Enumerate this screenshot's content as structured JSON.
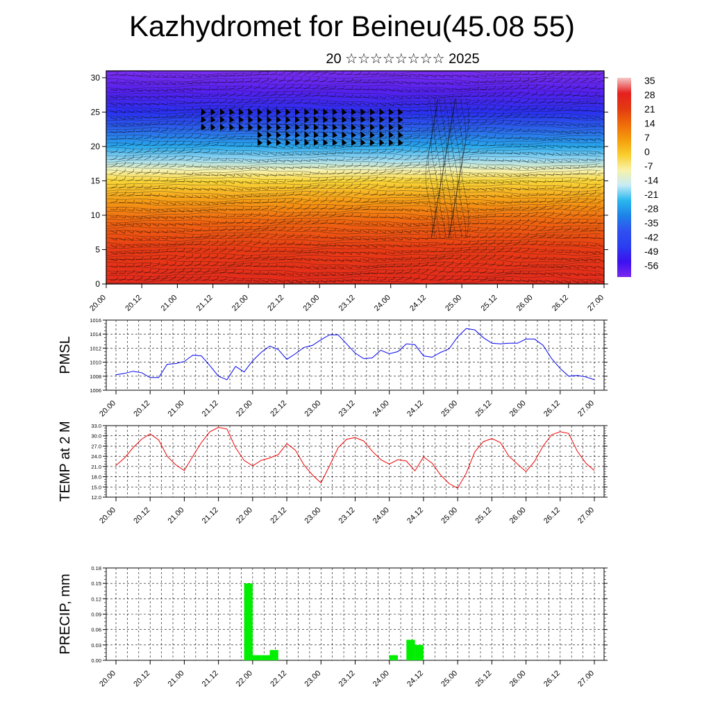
{
  "title": "Kazhydromet for Beineu(45.08 55)",
  "subtitle": "20 ☆☆☆☆☆☆☆☆ 2025",
  "time_ticks": [
    "20.00",
    "20.12",
    "21.00",
    "21.12",
    "22.00",
    "22.12",
    "23.00",
    "23.12",
    "24.00",
    "24.12",
    "25.00",
    "25.12",
    "26.00",
    "26.12",
    "27.00"
  ],
  "chart_data": [
    {
      "type": "heatmap",
      "name": "upper-air temperature with wind barbs",
      "y_ticks": [
        0,
        5,
        10,
        15,
        20,
        25,
        30
      ],
      "ylim": [
        0,
        31
      ],
      "colorbar": {
        "labels": [
          "35",
          "28",
          "21",
          "14",
          "7",
          "0",
          "-7",
          "-14",
          "-21",
          "-28",
          "-35",
          "-42",
          "-49",
          "-56"
        ],
        "colors": [
          "#f4c8c8",
          "#e52020",
          "#e23a10",
          "#ef6a0a",
          "#f59b0c",
          "#f9cd2a",
          "#f8f2a8",
          "#c8ecf6",
          "#2ab8ee",
          "#1e82e8",
          "#3050f0",
          "#2a3ff0",
          "#3c10ef",
          "#7a28ef"
        ]
      },
      "bands": [
        {
          "h": 0,
          "color": "#e42a1c"
        },
        {
          "h": 5,
          "color": "#e83a14"
        },
        {
          "h": 9,
          "color": "#ef6410"
        },
        {
          "h": 12,
          "color": "#f59a14"
        },
        {
          "h": 15,
          "color": "#f9d638"
        },
        {
          "h": 16.5,
          "color": "#f6f2b0"
        },
        {
          "h": 18,
          "color": "#9fdcf2"
        },
        {
          "h": 20,
          "color": "#28a8ec"
        },
        {
          "h": 22.5,
          "color": "#2a64ea"
        },
        {
          "h": 25,
          "color": "#2a30f0"
        },
        {
          "h": 28,
          "color": "#5420ee"
        },
        {
          "h": 31,
          "color": "#7a2ef0"
        }
      ]
    },
    {
      "type": "line",
      "ylabel": "PMSL",
      "ylim": [
        1006,
        1016
      ],
      "y_ticks": [
        "1006",
        "1008",
        "1010",
        "1012",
        "1014",
        "1016"
      ],
      "color": "#0000ee",
      "values": [
        1008.2,
        1008.4,
        1008.7,
        1008.5,
        1007.8,
        1007.8,
        1009.7,
        1009.8,
        1010.1,
        1011.0,
        1010.9,
        1009.5,
        1008.0,
        1007.5,
        1009.4,
        1008.6,
        1010.2,
        1011.4,
        1012.3,
        1011.8,
        1010.4,
        1011.2,
        1012.1,
        1012.4,
        1013.2,
        1013.9,
        1013.9,
        1012.6,
        1011.3,
        1010.5,
        1010.6,
        1011.7,
        1011.2,
        1011.5,
        1012.6,
        1012.5,
        1010.9,
        1010.7,
        1011.4,
        1011.9,
        1013.6,
        1014.8,
        1014.6,
        1013.5,
        1012.7,
        1012.6,
        1012.7,
        1012.7,
        1013.3,
        1013.3,
        1012.4,
        1010.5,
        1009.1,
        1008.0,
        1008.1,
        1007.9,
        1007.5
      ]
    },
    {
      "type": "line",
      "ylabel": "TEMP at 2 M",
      "ylim": [
        12,
        33
      ],
      "y_ticks": [
        "12.0",
        "15.0",
        "18.0",
        "21.0",
        "24.0",
        "27.0",
        "30.0",
        "33.0"
      ],
      "color": "#ee0000",
      "values": [
        21.3,
        23.5,
        26.5,
        29.0,
        30.6,
        28.8,
        24.0,
        21.5,
        19.8,
        24.0,
        28.0,
        31.2,
        32.5,
        32.0,
        26.5,
        22.8,
        21.2,
        22.8,
        23.5,
        24.5,
        27.7,
        25.8,
        21.5,
        18.5,
        16.2,
        21.2,
        26.5,
        29.0,
        29.5,
        28.5,
        25.5,
        23.0,
        21.7,
        23.0,
        22.6,
        19.7,
        23.8,
        22.0,
        18.5,
        16.0,
        14.6,
        19.0,
        25.3,
        28.3,
        29.2,
        28.0,
        24.0,
        21.7,
        19.5,
        22.5,
        27.0,
        30.3,
        31.2,
        30.7,
        25.5,
        22.0,
        19.8
      ]
    },
    {
      "type": "bar",
      "ylabel": "PRECIP, mm",
      "ylim": [
        0,
        0.18
      ],
      "y_ticks": [
        "0.00",
        "0.03",
        "0.06",
        "0.09",
        "0.12",
        "0.15",
        "0.18"
      ],
      "color": "#00ee00",
      "bars": [
        {
          "t": 15,
          "value": 0.15
        },
        {
          "t": 16,
          "value": 0.01
        },
        {
          "t": 17,
          "value": 0.01
        },
        {
          "t": 18,
          "value": 0.02
        },
        {
          "t": 32,
          "value": 0.01
        },
        {
          "t": 34,
          "value": 0.04
        },
        {
          "t": 35,
          "value": 0.03
        }
      ]
    }
  ]
}
